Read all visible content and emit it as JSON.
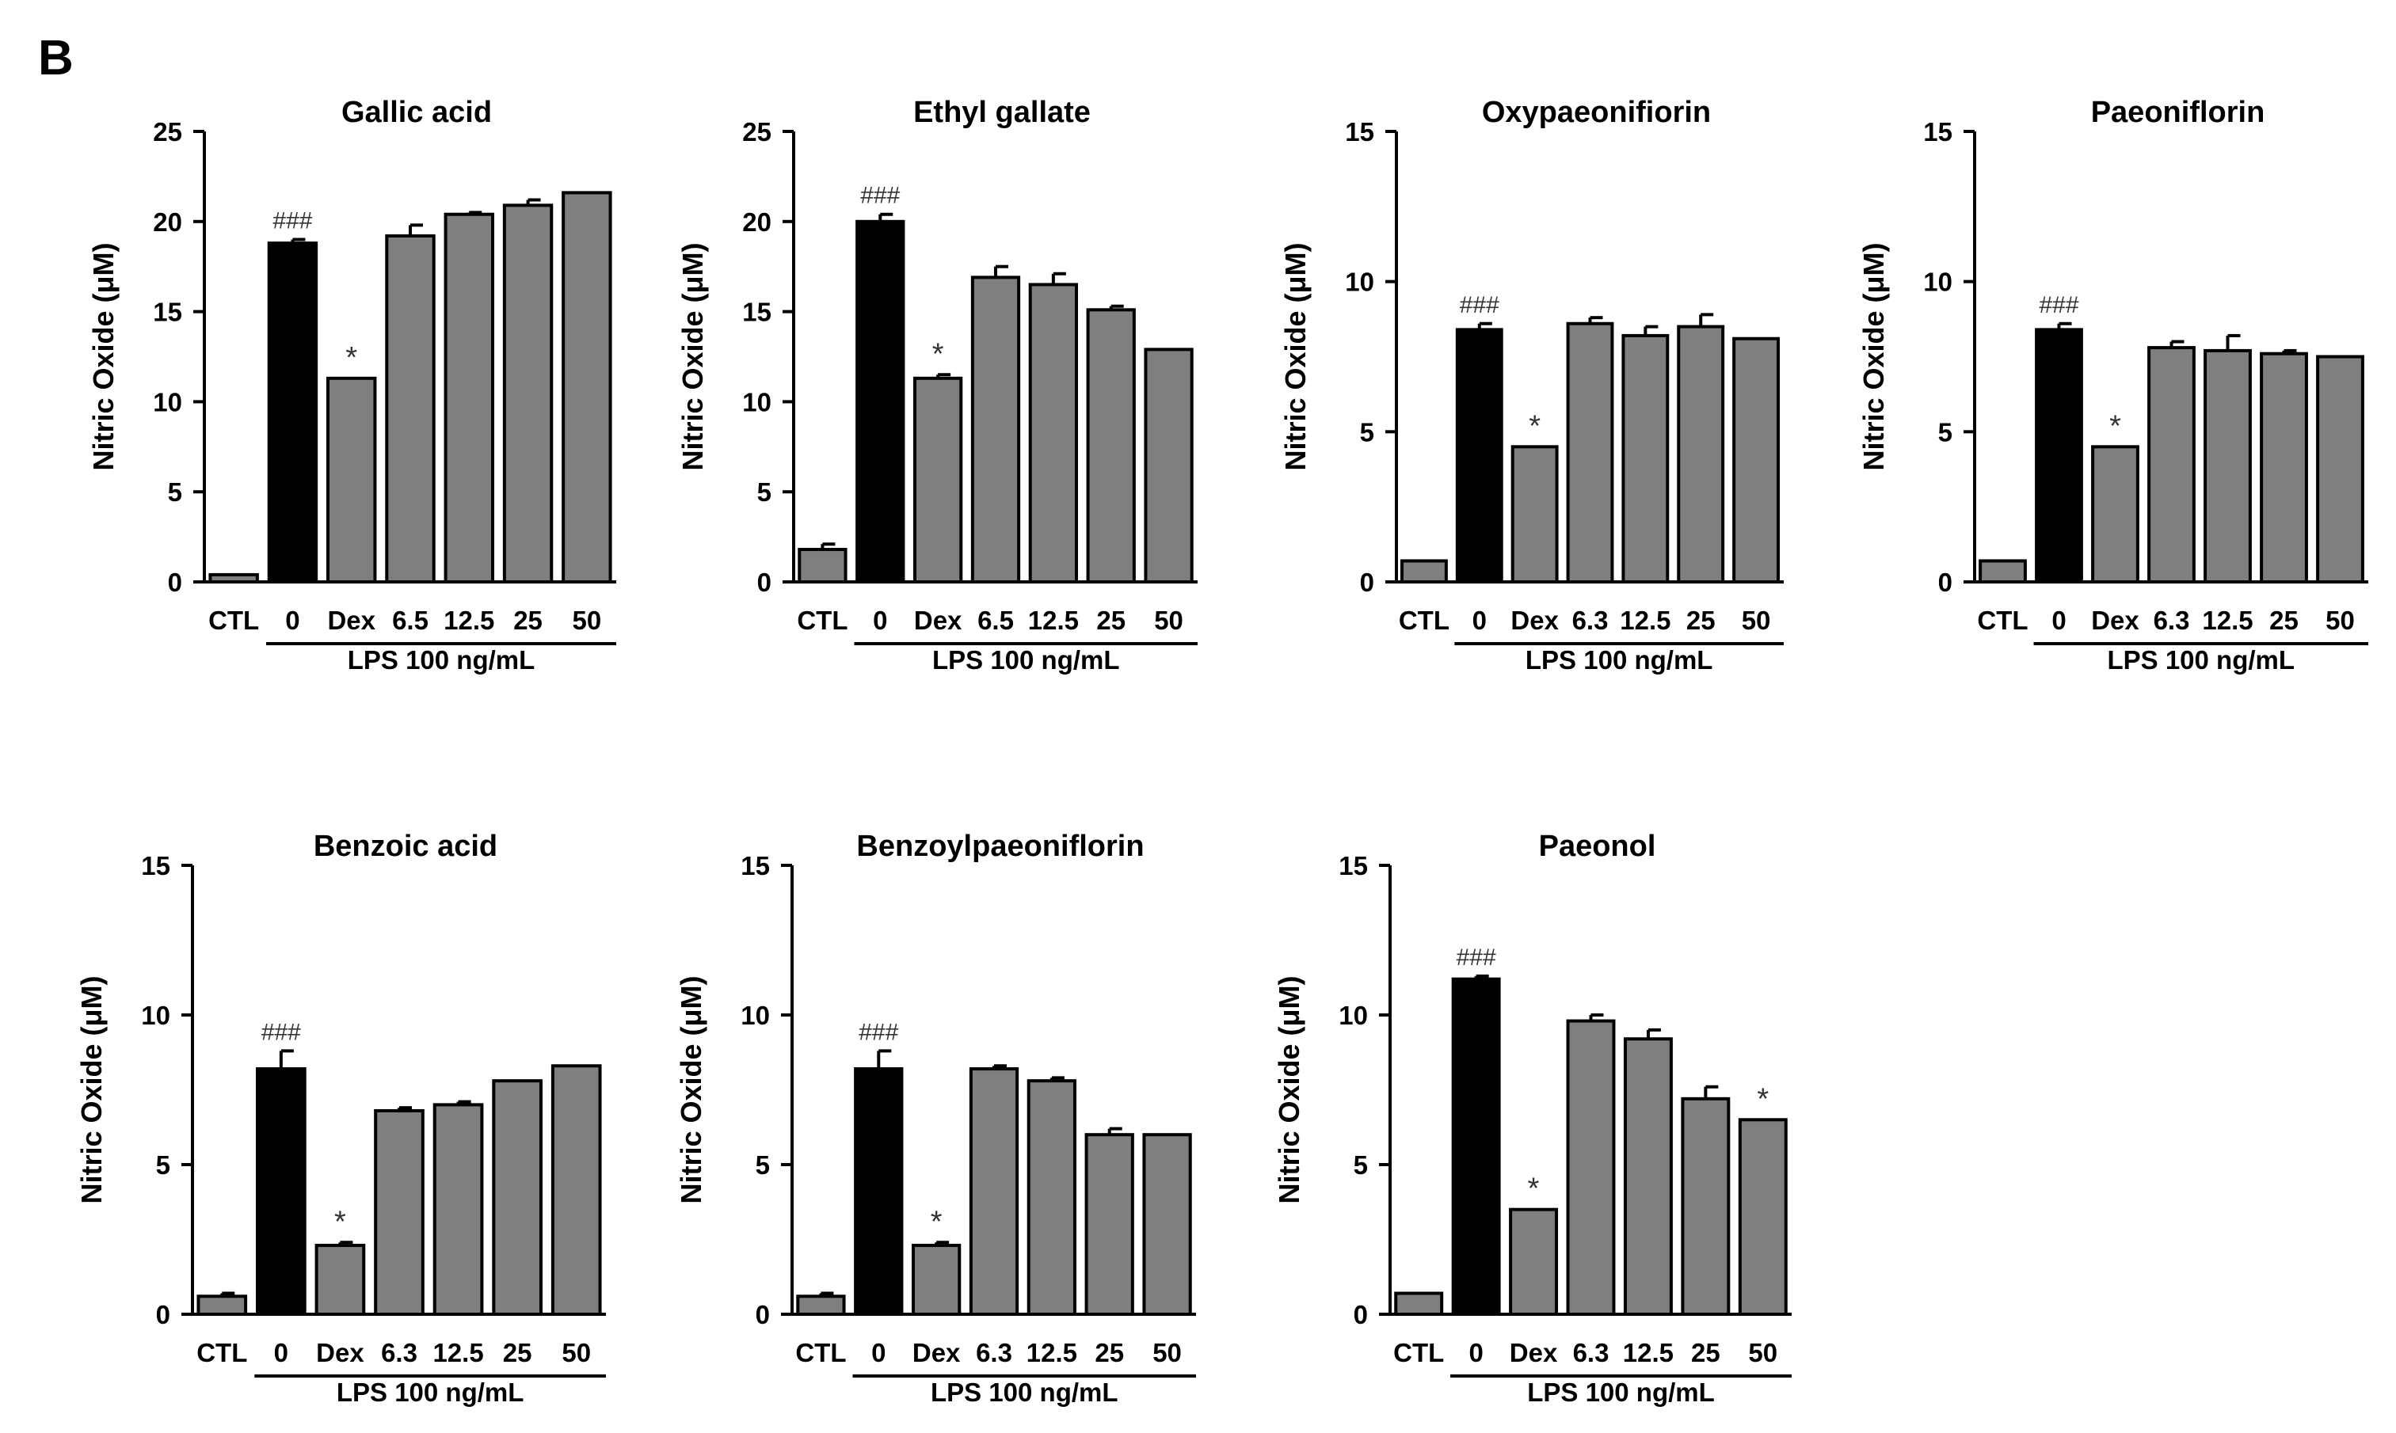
{
  "panel_label": "B",
  "colors": {
    "control_bar": "#000000",
    "treatment_bar": "#7f7f7f",
    "axis": "#000000",
    "text": "#000000",
    "annotation": "#333333"
  },
  "group_label": "LPS 100 ng/mL",
  "chart_data": [
    {
      "type": "bar",
      "title": "Gallic acid",
      "ylabel": "Nitric Oxide (μM)",
      "ylim": [
        0,
        25
      ],
      "yticks": [
        "0",
        "5",
        "10",
        "15",
        "20",
        "25"
      ],
      "categories": [
        "CTL",
        "0",
        "Dex",
        "6.5",
        "12.5",
        "25",
        "50"
      ],
      "values": [
        0.4,
        18.8,
        11.3,
        19.2,
        20.4,
        20.9,
        21.6
      ],
      "errors": [
        0.0,
        0.2,
        0.0,
        0.6,
        0.1,
        0.3,
        0.0
      ],
      "annotations": [
        "",
        "###",
        "*",
        "",
        "",
        "",
        ""
      ],
      "group_label": "LPS 100 ng/mL"
    },
    {
      "type": "bar",
      "title": "Ethyl gallate",
      "ylabel": "Nitric Oxide (μM)",
      "ylim": [
        0,
        25
      ],
      "yticks": [
        "0",
        "5",
        "10",
        "15",
        "20",
        "25"
      ],
      "categories": [
        "CTL",
        "0",
        "Dex",
        "6.5",
        "12.5",
        "25",
        "50"
      ],
      "values": [
        1.8,
        20.0,
        11.3,
        16.9,
        16.5,
        15.1,
        12.9
      ],
      "errors": [
        0.3,
        0.4,
        0.2,
        0.6,
        0.6,
        0.2,
        0.0
      ],
      "annotations": [
        "",
        "###",
        "*",
        "",
        "",
        "",
        ""
      ],
      "group_label": "LPS 100 ng/mL"
    },
    {
      "type": "bar",
      "title": "Oxypaeonifiorin",
      "ylabel": "Nitric Oxide (μM)",
      "ylim": [
        0,
        15
      ],
      "yticks": [
        "0",
        "5",
        "10",
        "15"
      ],
      "categories": [
        "CTL",
        "0",
        "Dex",
        "6.3",
        "12.5",
        "25",
        "50"
      ],
      "values": [
        0.7,
        8.4,
        4.5,
        8.6,
        8.2,
        8.5,
        8.1
      ],
      "errors": [
        0.0,
        0.2,
        0.0,
        0.2,
        0.3,
        0.4,
        0.0
      ],
      "annotations": [
        "",
        "###",
        "*",
        "",
        "",
        "",
        ""
      ],
      "group_label": "LPS 100 ng/mL"
    },
    {
      "type": "bar",
      "title": "Paeoniflorin",
      "ylabel": "Nitric Oxide (μM)",
      "ylim": [
        0,
        15
      ],
      "yticks": [
        "0",
        "5",
        "10",
        "15"
      ],
      "categories": [
        "CTL",
        "0",
        "Dex",
        "6.3",
        "12.5",
        "25",
        "50"
      ],
      "values": [
        0.7,
        8.4,
        4.5,
        7.8,
        7.7,
        7.6,
        7.5
      ],
      "errors": [
        0.0,
        0.2,
        0.0,
        0.2,
        0.5,
        0.1,
        0.0
      ],
      "annotations": [
        "",
        "###",
        "*",
        "",
        "",
        "",
        ""
      ],
      "group_label": "LPS 100 ng/mL"
    },
    {
      "type": "bar",
      "title": "Benzoic acid",
      "ylabel": "Nitric Oxide (μM)",
      "ylim": [
        0,
        15
      ],
      "yticks": [
        "0",
        "5",
        "10",
        "15"
      ],
      "categories": [
        "CTL",
        "0",
        "Dex",
        "6.3",
        "12.5",
        "25",
        "50"
      ],
      "values": [
        0.6,
        8.2,
        2.3,
        6.8,
        7.0,
        7.8,
        8.3
      ],
      "errors": [
        0.1,
        0.6,
        0.1,
        0.1,
        0.1,
        0.0,
        0.0
      ],
      "annotations": [
        "",
        "###",
        "*",
        "",
        "",
        "",
        ""
      ],
      "group_label": "LPS 100 ng/mL"
    },
    {
      "type": "bar",
      "title": "Benzoylpaeoniflorin",
      "ylabel": "Nitric Oxide (μM)",
      "ylim": [
        0,
        15
      ],
      "yticks": [
        "0",
        "5",
        "10",
        "15"
      ],
      "categories": [
        "CTL",
        "0",
        "Dex",
        "6.3",
        "12.5",
        "25",
        "50"
      ],
      "values": [
        0.6,
        8.2,
        2.3,
        8.2,
        7.8,
        6.0,
        6.0
      ],
      "errors": [
        0.1,
        0.6,
        0.1,
        0.1,
        0.1,
        0.2,
        0.0
      ],
      "annotations": [
        "",
        "###",
        "*",
        "",
        "",
        "",
        ""
      ],
      "group_label": "LPS 100 ng/mL"
    },
    {
      "type": "bar",
      "title": "Paeonol",
      "ylabel": "Nitric Oxide (μM)",
      "ylim": [
        0,
        15
      ],
      "yticks": [
        "0",
        "5",
        "10",
        "15"
      ],
      "categories": [
        "CTL",
        "0",
        "Dex",
        "6.3",
        "12.5",
        "25",
        "50"
      ],
      "values": [
        0.7,
        11.2,
        3.5,
        9.8,
        9.2,
        7.2,
        6.5
      ],
      "errors": [
        0.0,
        0.1,
        0.0,
        0.2,
        0.3,
        0.4,
        0.0
      ],
      "annotations": [
        "",
        "###",
        "*",
        "",
        "",
        "",
        "*"
      ],
      "group_label": "LPS 100 ng/mL"
    }
  ]
}
